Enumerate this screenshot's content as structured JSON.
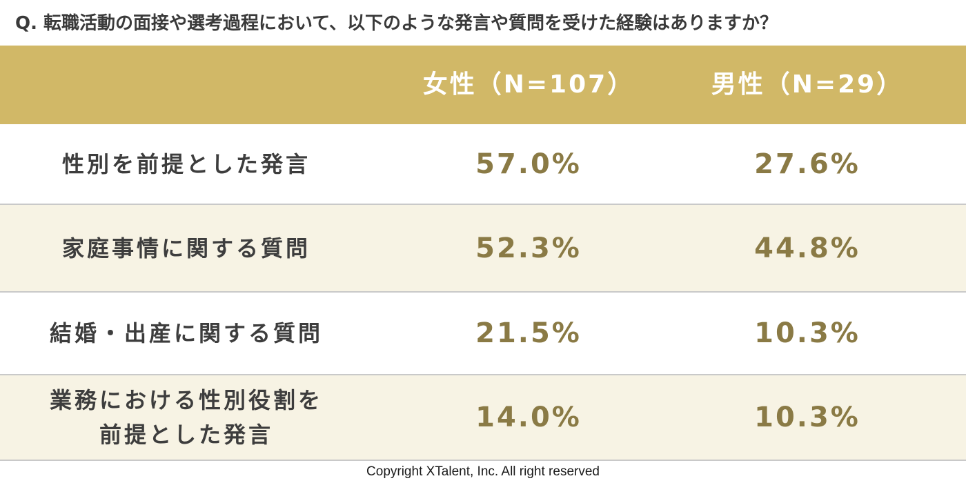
{
  "question": "Q. 転職活動の面接や選考過程において、以下のような発言や質問を受けた経験はありますか？",
  "footer": "Copyright XTalent, Inc. All right reserved",
  "colors": {
    "header_bg": "#d1b867",
    "header_text": "#ffffff",
    "value_text": "#8a7a45",
    "alt_row_bg": "#f7f3e4"
  },
  "chart_data": {
    "type": "table",
    "columns": [
      "女性（N=107）",
      "男性（N=29）"
    ],
    "rows": [
      {
        "label": "性別を前提とした発言",
        "female": "57.0%",
        "male": "27.6%"
      },
      {
        "label": "家庭事情に関する質問",
        "female": "52.3%",
        "male": "44.8%"
      },
      {
        "label": "結婚・出産に関する質問",
        "female": "21.5%",
        "male": "10.3%"
      },
      {
        "label": "業務における性別役割を\n前提とした発言",
        "female": "14.0%",
        "male": "10.3%"
      }
    ],
    "series": [
      {
        "name": "女性（N=107）",
        "values": [
          57.0,
          52.3,
          21.5,
          14.0
        ]
      },
      {
        "name": "男性（N=29）",
        "values": [
          27.6,
          44.8,
          10.3,
          10.3
        ]
      }
    ]
  }
}
